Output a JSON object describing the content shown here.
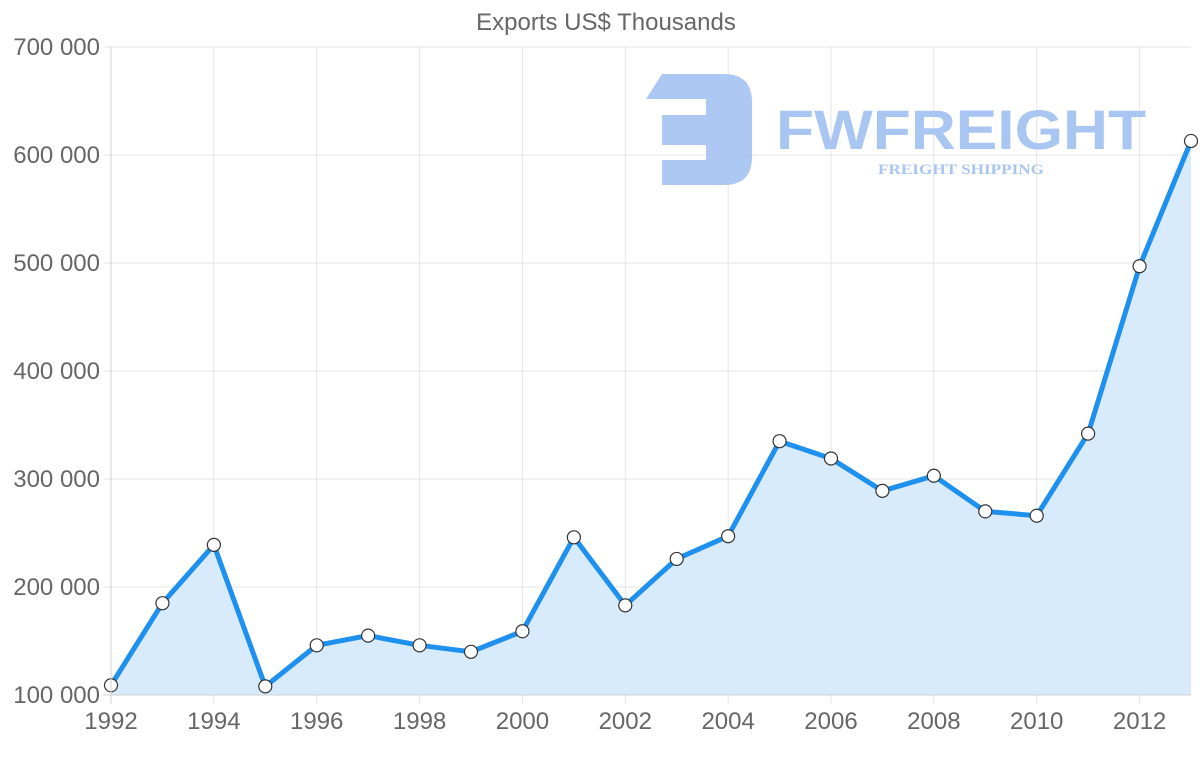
{
  "chart_data": {
    "type": "line",
    "title": "Exports US$ Thousands",
    "xlabel": "",
    "ylabel": "",
    "x": [
      1992,
      1993,
      1994,
      1995,
      1996,
      1997,
      1998,
      1999,
      2000,
      2001,
      2002,
      2003,
      2004,
      2005,
      2006,
      2007,
      2008,
      2009,
      2010,
      2011,
      2012,
      2013
    ],
    "series": [
      {
        "name": "Exports US$ Thousands",
        "values": [
          109000,
          185000,
          239000,
          108000,
          146000,
          155000,
          146000,
          140000,
          159000,
          246000,
          183000,
          226000,
          247000,
          335000,
          319000,
          289000,
          303000,
          270000,
          266000,
          342000,
          497000,
          613000
        ],
        "fill": true
      }
    ],
    "ylim": [
      100000,
      700000
    ],
    "xlim": [
      1992,
      2013
    ],
    "y_ticks": [
      "700 000",
      "600 000",
      "500 000",
      "400 000",
      "300 000",
      "200 000",
      "100 000"
    ],
    "y_tick_values": [
      700000,
      600000,
      500000,
      400000,
      300000,
      200000,
      100000
    ],
    "x_ticks": [
      "1992",
      "1994",
      "1996",
      "1998",
      "2000",
      "2002",
      "2004",
      "2006",
      "2008",
      "2010",
      "2012"
    ],
    "x_tick_values": [
      1992,
      1994,
      1996,
      1998,
      2000,
      2002,
      2004,
      2006,
      2008,
      2010,
      2012
    ],
    "grid": true,
    "legend": "none",
    "colors": {
      "line": "#1e90ee",
      "fill": "#d8ebfc",
      "point_fill": "#ffffff",
      "point_stroke": "#333333",
      "grid": "#e5e5e5",
      "text": "#666666"
    }
  },
  "watermark": {
    "brand": "FWFREIGHT",
    "tagline": "FREIGHT SHIPPING",
    "color": "#a9c6f2"
  }
}
